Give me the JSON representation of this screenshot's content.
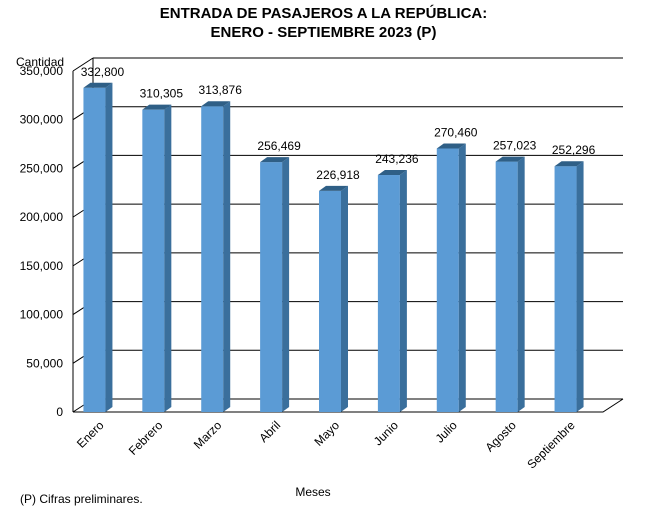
{
  "chart_data": {
    "type": "bar",
    "title": "ENTRADA DE PASAJEROS A LA REPÚBLICA:",
    "subtitle": "ENERO - SEPTIEMBRE 2023 (P)",
    "ylabel": "Cantidad",
    "xlabel": "Meses",
    "categories": [
      "Enero",
      "Febrero",
      "Marzo",
      "Abril",
      "Mayo",
      "Junio",
      "Julio",
      "Agosto",
      "Septiembre"
    ],
    "values": [
      332800,
      310305,
      313876,
      256469,
      226918,
      243236,
      270460,
      257023,
      252296
    ],
    "data_labels": [
      "332,800",
      "310,305",
      "313,876",
      "256,469",
      "226,918",
      "243,236",
      "270,460",
      "257,023",
      "252,296"
    ],
    "yticks": [
      0,
      50000,
      100000,
      150000,
      200000,
      250000,
      300000,
      350000
    ],
    "ytick_labels": [
      "0",
      "50,000",
      "100,000",
      "150,000",
      "200,000",
      "250,000",
      "300,000",
      "350,000"
    ],
    "ylim": [
      0,
      350000
    ],
    "grid": true,
    "legend": "none",
    "colors": {
      "bar_front": "#5b9bd5",
      "bar_side": "#3a6f9c",
      "bar_top": "#2f5f86",
      "grid": "#000000"
    }
  },
  "footnote": "(P) Cifras  preliminares."
}
